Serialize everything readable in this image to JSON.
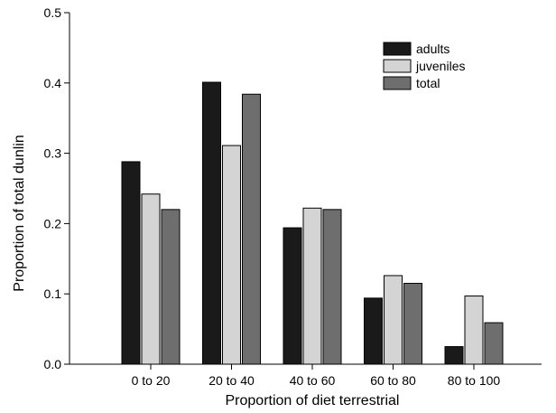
{
  "chart_data": {
    "type": "bar",
    "title": "",
    "xlabel": "Proportion of diet terrestrial",
    "ylabel": "Proportion of total dunlin",
    "categories": [
      "0 to 20",
      "20 to 40",
      "40 to 60",
      "60 to 80",
      "80 to 100"
    ],
    "ylim": [
      0,
      0.5
    ],
    "yticks": [
      "0.0",
      "0.1",
      "0.2",
      "0.3",
      "0.4",
      "0.5"
    ],
    "grid": false,
    "legend_position": "top-right",
    "series": [
      {
        "name": "adults",
        "color": "#1a1a1a",
        "values": [
          0.288,
          0.401,
          0.194,
          0.094,
          0.025
        ]
      },
      {
        "name": "juveniles",
        "color": "#d4d4d4",
        "values": [
          0.242,
          0.311,
          0.222,
          0.126,
          0.097
        ]
      },
      {
        "name": "total",
        "color": "#6e6e6e",
        "values": [
          0.22,
          0.384,
          0.22,
          0.115,
          0.059
        ]
      }
    ]
  }
}
